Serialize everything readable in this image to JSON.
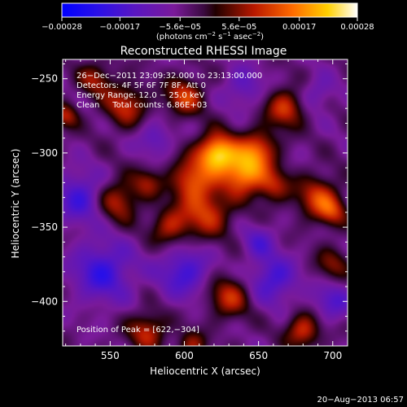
{
  "chart_data": {
    "type": "heatmap",
    "title": "Reconstructed RHESSI Image",
    "xlabel": "Heliocentric X (arcsec)",
    "ylabel": "Heliocentric Y (arcsec)",
    "xlim": [
      518,
      710
    ],
    "ylim": [
      -430,
      -237
    ],
    "x_ticks": [
      550,
      600,
      650,
      700
    ],
    "y_ticks": [
      -250,
      -300,
      -350,
      -400
    ],
    "x_tick_labels": [
      "550",
      "600",
      "650",
      "700"
    ],
    "y_tick_labels": [
      "−250",
      "−300",
      "−350",
      "−400"
    ],
    "colorbar": {
      "range": [
        -0.00028,
        0.00028
      ],
      "ticks": [
        -0.00028,
        -0.00017,
        -5.6e-05,
        5.6e-05,
        0.00017,
        0.00028
      ],
      "tick_labels": [
        "−0.00028",
        "−0.00017",
        "−5.6e−05",
        "5.6e−05",
        "0.00017",
        "0.00028"
      ],
      "unit_prefix": "(photons cm",
      "unit_exp1": "−2",
      "unit_mid": " s",
      "unit_exp2": "−1",
      "unit_mid2": " asec",
      "unit_exp3": "−2",
      "unit_suffix": ")"
    },
    "info_lines": [
      "26−Dec−2011 23:09:32.000 to 23:13:00.000",
      "Detectors: 4F 5F 6F 7F 8F, Att 0",
      "Energy Range: 12.0 − 25.0 keV",
      "Clean     Total counts: 6.86E+03"
    ],
    "peak_text": "Position of Peak = [622,−304]",
    "peak": [
      622,
      -304
    ],
    "sources": [
      {
        "x": 622,
        "y": -300,
        "amp": 1.0,
        "sigma": 9
      },
      {
        "x": 640,
        "y": -313,
        "amp": 0.85,
        "sigma": 10
      },
      {
        "x": 650,
        "y": -297,
        "amp": 0.55,
        "sigma": 9
      },
      {
        "x": 605,
        "y": -318,
        "amp": 0.6,
        "sigma": 10
      },
      {
        "x": 615,
        "y": -340,
        "amp": 0.55,
        "sigma": 12
      },
      {
        "x": 660,
        "y": -322,
        "amp": 0.45,
        "sigma": 8
      },
      {
        "x": 668,
        "y": -270,
        "amp": 0.55,
        "sigma": 9
      },
      {
        "x": 600,
        "y": -262,
        "amp": 0.55,
        "sigma": 9
      },
      {
        "x": 560,
        "y": -268,
        "amp": 0.5,
        "sigma": 10
      },
      {
        "x": 540,
        "y": -250,
        "amp": 0.4,
        "sigma": 8
      },
      {
        "x": 555,
        "y": -332,
        "amp": 0.5,
        "sigma": 10
      },
      {
        "x": 575,
        "y": -320,
        "amp": 0.35,
        "sigma": 7
      },
      {
        "x": 590,
        "y": -350,
        "amp": 0.45,
        "sigma": 9
      },
      {
        "x": 690,
        "y": -330,
        "amp": 0.55,
        "sigma": 10
      },
      {
        "x": 700,
        "y": -340,
        "amp": 0.4,
        "sigma": 7
      },
      {
        "x": 700,
        "y": -375,
        "amp": 0.35,
        "sigma": 8
      },
      {
        "x": 630,
        "y": -397,
        "amp": 0.5,
        "sigma": 10
      },
      {
        "x": 680,
        "y": -420,
        "amp": 0.55,
        "sigma": 8
      },
      {
        "x": 575,
        "y": -420,
        "amp": 0.5,
        "sigma": 9
      },
      {
        "x": 605,
        "y": -430,
        "amp": 0.4,
        "sigma": 7
      },
      {
        "x": 520,
        "y": -275,
        "amp": 0.45,
        "sigma": 6
      },
      {
        "x": 530,
        "y": -330,
        "amp": -0.45,
        "sigma": 12
      },
      {
        "x": 545,
        "y": -380,
        "amp": -0.5,
        "sigma": 14
      },
      {
        "x": 600,
        "y": -380,
        "amp": -0.45,
        "sigma": 12
      },
      {
        "x": 660,
        "y": -385,
        "amp": -0.45,
        "sigma": 11
      },
      {
        "x": 580,
        "y": -290,
        "amp": -0.3,
        "sigma": 8
      },
      {
        "x": 690,
        "y": -260,
        "amp": -0.25,
        "sigma": 8
      },
      {
        "x": 640,
        "y": -255,
        "amp": -0.3,
        "sigma": 9
      },
      {
        "x": 700,
        "y": -400,
        "amp": -0.35,
        "sigma": 9
      },
      {
        "x": 650,
        "y": -360,
        "amp": -0.3,
        "sigma": 8
      }
    ]
  },
  "footer": {
    "timestamp": "20−Aug−2013 06:57"
  }
}
